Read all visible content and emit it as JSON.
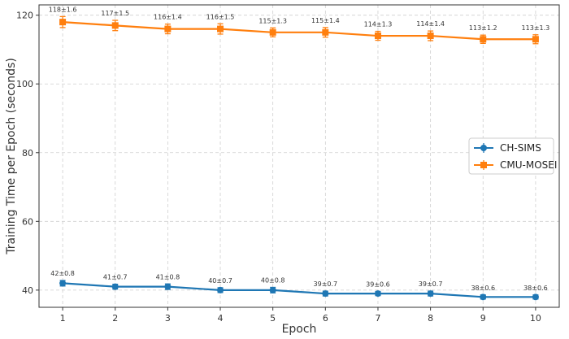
{
  "chart_data": {
    "type": "line",
    "title": "",
    "xlabel": "Epoch",
    "ylabel": "Training Time per Epoch (seconds)",
    "x": [
      1,
      2,
      3,
      4,
      5,
      6,
      7,
      8,
      9,
      10
    ],
    "xlim": [
      0.55,
      10.45
    ],
    "ylim": [
      35,
      123
    ],
    "yticks": [
      40,
      60,
      80,
      100,
      120
    ],
    "grid": true,
    "legend_position": "right",
    "series": [
      {
        "name": "CH-SIMS",
        "color": "#1f77b4",
        "marker": "circle",
        "values": [
          42,
          41,
          41,
          40,
          40,
          39,
          39,
          39,
          38,
          38
        ],
        "errors": [
          0.8,
          0.7,
          0.8,
          0.7,
          0.8,
          0.7,
          0.6,
          0.7,
          0.6,
          0.6
        ],
        "labels": [
          "42±0.8",
          "41±0.7",
          "41±0.8",
          "40±0.7",
          "40±0.8",
          "39±0.7",
          "39±0.6",
          "39±0.7",
          "38±0.6",
          "38±0.6"
        ]
      },
      {
        "name": "CMU-MOSEI",
        "color": "#ff7f0e",
        "marker": "square",
        "values": [
          118,
          117,
          116,
          116,
          115,
          115,
          114,
          114,
          113,
          113
        ],
        "errors": [
          1.6,
          1.5,
          1.4,
          1.5,
          1.3,
          1.4,
          1.3,
          1.4,
          1.2,
          1.3
        ],
        "labels": [
          "118±1.6",
          "117±1.5",
          "116±1.4",
          "116±1.5",
          "115±1.3",
          "115±1.4",
          "114±1.3",
          "114±1.4",
          "113±1.2",
          "113±1.3"
        ]
      }
    ]
  }
}
